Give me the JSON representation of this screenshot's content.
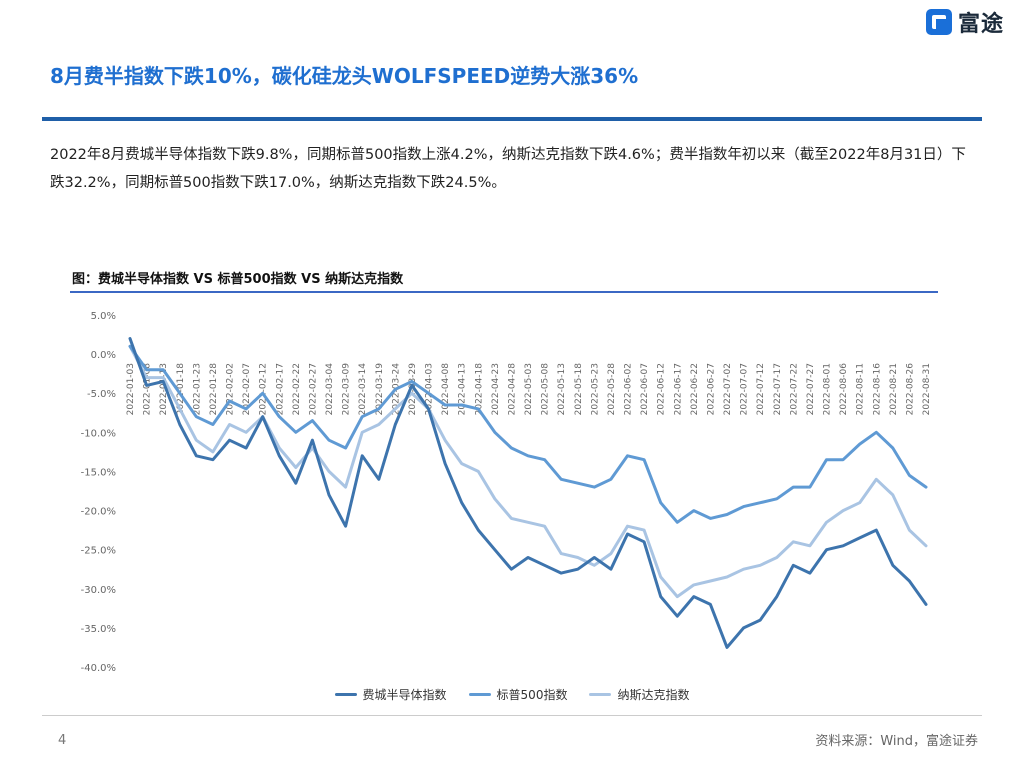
{
  "header": {
    "logo_text": "富途",
    "title": "8月费半指数下跌10%，碳化硅龙头WOLFSPEED逆势大涨36%"
  },
  "summary": "2022年8月费城半导体指数下跌9.8%，同期标普500指数上涨4.2%，纳斯达克指数下跌4.6%；费半指数年初以来（截至2022年8月31日）下跌32.2%，同期标普500指数下跌17.0%，纳斯达克指数下跌24.5%。",
  "chart_data": {
    "type": "line",
    "title": "图：费城半导体指数 VS 标普500指数 VS 纳斯达克指数",
    "ylim": [
      -40,
      5
    ],
    "y_ticks": [
      5,
      0,
      -5,
      -10,
      -15,
      -20,
      -25,
      -30,
      -35,
      -40
    ],
    "y_tick_labels": [
      "5.0%",
      "0.0%",
      "-5.0%",
      "-10.0%",
      "-15.0%",
      "-20.0%",
      "-25.0%",
      "-30.0%",
      "-35.0%",
      "-40.0%"
    ],
    "categories": [
      "2022-01-03",
      "2022-01-08",
      "2022-01-13",
      "2022-01-18",
      "2022-01-23",
      "2022-01-28",
      "2022-02-02",
      "2022-02-07",
      "2022-02-12",
      "2022-02-17",
      "2022-02-22",
      "2022-02-27",
      "2022-03-04",
      "2022-03-09",
      "2022-03-14",
      "2022-03-19",
      "2022-03-24",
      "2022-03-29",
      "2022-04-03",
      "2022-04-08",
      "2022-04-13",
      "2022-04-18",
      "2022-04-23",
      "2022-04-28",
      "2022-05-03",
      "2022-05-08",
      "2022-05-13",
      "2022-05-18",
      "2022-05-23",
      "2022-05-28",
      "2022-06-02",
      "2022-06-07",
      "2022-06-12",
      "2022-06-17",
      "2022-06-22",
      "2022-06-27",
      "2022-07-02",
      "2022-07-07",
      "2022-07-12",
      "2022-07-17",
      "2022-07-22",
      "2022-07-27",
      "2022-08-01",
      "2022-08-06",
      "2022-08-11",
      "2022-08-16",
      "2022-08-21",
      "2022-08-26",
      "2022-08-31"
    ],
    "series": [
      {
        "name": "费城半导体指数",
        "color": "#3d74ad",
        "values": [
          2.0,
          -4.0,
          -3.5,
          -9.0,
          -13.0,
          -13.5,
          -11.0,
          -12.0,
          -8.0,
          -13.0,
          -16.5,
          -11.0,
          -18.0,
          -22.0,
          -13.0,
          -16.0,
          -9.0,
          -4.0,
          -7.0,
          -14.0,
          -19.0,
          -22.5,
          -25.0,
          -27.5,
          -26.0,
          -27.0,
          -28.0,
          -27.5,
          -26.0,
          -27.5,
          -23.0,
          -24.0,
          -31.0,
          -33.5,
          -31.0,
          -32.0,
          -37.5,
          -35.0,
          -34.0,
          -31.0,
          -27.0,
          -28.0,
          -25.0,
          -24.5,
          -23.5,
          -22.5,
          -27.0,
          -29.0,
          -32.0
        ]
      },
      {
        "name": "标普500指数",
        "color": "#5f9ad4",
        "values": [
          1.0,
          -2.0,
          -2.0,
          -5.0,
          -8.0,
          -9.0,
          -6.0,
          -7.0,
          -5.0,
          -8.0,
          -10.0,
          -8.5,
          -11.0,
          -12.0,
          -8.0,
          -7.0,
          -4.5,
          -3.5,
          -5.0,
          -6.5,
          -6.5,
          -7.0,
          -10.0,
          -12.0,
          -13.0,
          -13.5,
          -16.0,
          -16.5,
          -17.0,
          -16.0,
          -13.0,
          -13.5,
          -19.0,
          -21.5,
          -20.0,
          -21.0,
          -20.5,
          -19.5,
          -19.0,
          -18.5,
          -17.0,
          -17.0,
          -13.5,
          -13.5,
          -11.5,
          -10.0,
          -12.0,
          -15.5,
          -17.0
        ]
      },
      {
        "name": "纳斯达克指数",
        "color": "#a9c4e3",
        "values": [
          1.0,
          -3.0,
          -3.0,
          -7.0,
          -11.0,
          -12.5,
          -9.0,
          -10.0,
          -8.0,
          -12.0,
          -14.5,
          -12.0,
          -15.0,
          -17.0,
          -10.0,
          -9.0,
          -7.0,
          -5.0,
          -7.0,
          -11.0,
          -14.0,
          -15.0,
          -18.5,
          -21.0,
          -21.5,
          -22.0,
          -25.5,
          -26.0,
          -27.0,
          -25.5,
          -22.0,
          -22.5,
          -28.5,
          -31.0,
          -29.5,
          -29.0,
          -28.5,
          -27.5,
          -27.0,
          -26.0,
          -24.0,
          -24.5,
          -21.5,
          -20.0,
          -19.0,
          -16.0,
          -18.0,
          -22.5,
          -24.5
        ]
      }
    ]
  },
  "footer": {
    "page_number": "4",
    "source": "资料来源：Wind，富途证券"
  }
}
